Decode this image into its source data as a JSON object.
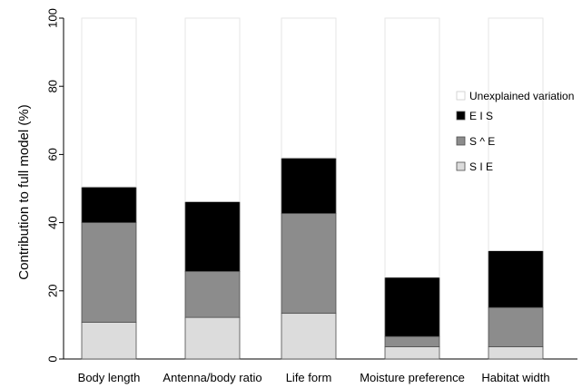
{
  "chart_data": {
    "type": "bar",
    "stacked": true,
    "ylabel": "Contribution to full model (%)",
    "xlabel": "",
    "ylim": [
      0,
      100
    ],
    "yticks": [
      0,
      20,
      40,
      60,
      80,
      100
    ],
    "grid": false,
    "legend_position": "right",
    "categories": [
      "Body length",
      "Antenna/body ratio",
      "Life form",
      "Moisture preference",
      "Habitat width"
    ],
    "series": [
      {
        "name": "S I E",
        "color": "#dcdcdc",
        "values": [
          10.8,
          12.2,
          13.4,
          3.6,
          3.6
        ]
      },
      {
        "name": "S ^ E",
        "color": "#8c8c8c",
        "values": [
          29.2,
          13.5,
          29.3,
          3.0,
          11.5
        ]
      },
      {
        "name": "E I S",
        "color": "#000000",
        "values": [
          10.5,
          20.5,
          16.3,
          17.4,
          16.7
        ]
      },
      {
        "name": "Unexplained variation",
        "color": "#ffffff",
        "values": [
          49.5,
          53.8,
          41.0,
          76.0,
          68.2
        ]
      }
    ],
    "legend_order": [
      "Unexplained variation",
      "E I S",
      "S ^ E",
      "S I E"
    ]
  }
}
